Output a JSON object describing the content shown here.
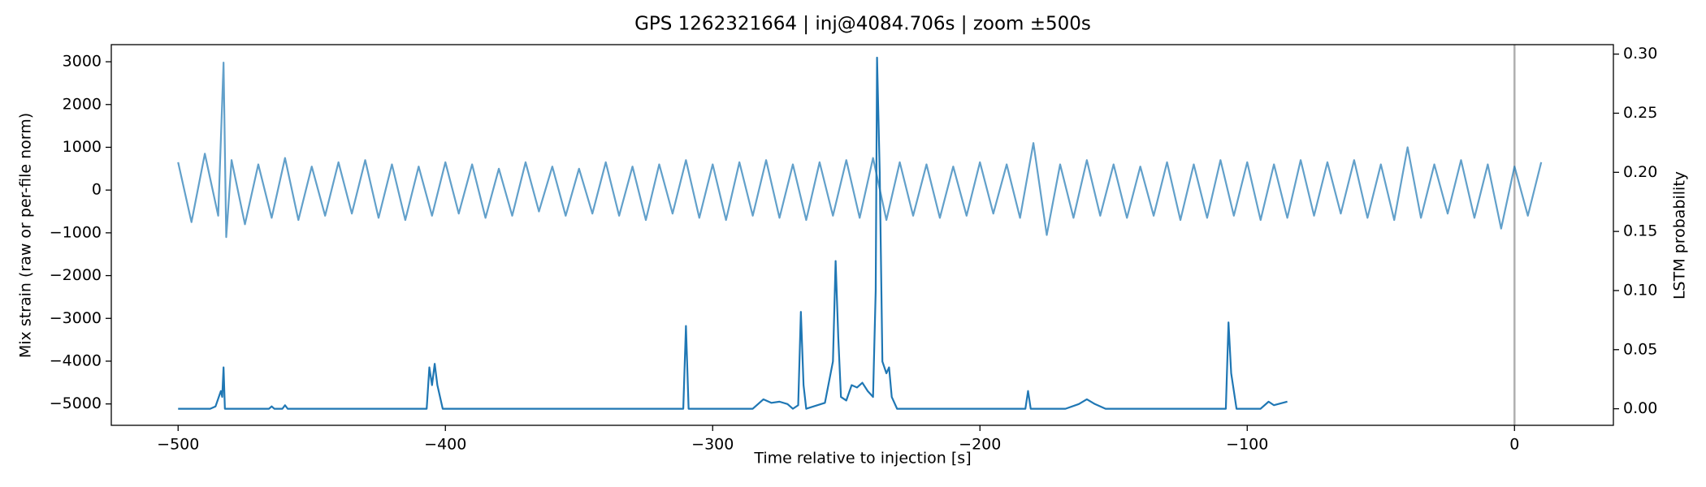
{
  "chart_data": {
    "type": "line",
    "title": "GPS 1262321664 | inj@4084.706s | zoom ±500s",
    "xlabel": "Time relative to injection [s]",
    "ylabel": "Mix strain (raw or per-file norm)",
    "y2label": "LSTM probability",
    "xlim": [
      -525,
      37
    ],
    "ylim": [
      -5500,
      3400
    ],
    "y2lim": [
      -0.014,
      0.308
    ],
    "xticks": [
      {
        "value": -500,
        "label": "−500"
      },
      {
        "value": -400,
        "label": "−400"
      },
      {
        "value": -300,
        "label": "−300"
      },
      {
        "value": -200,
        "label": "−200"
      },
      {
        "value": -100,
        "label": "−100"
      },
      0
    ],
    "yticks": [
      {
        "value": -5000,
        "label": "−5000"
      },
      {
        "value": -4000,
        "label": "−4000"
      },
      {
        "value": -3000,
        "label": "−3000"
      },
      {
        "value": -2000,
        "label": "−2000"
      },
      {
        "value": -1000,
        "label": "−1000"
      },
      0,
      1000,
      2000,
      3000
    ],
    "y2ticks": [
      {
        "value": 0,
        "label": "0.00"
      },
      0.05,
      {
        "value": 0.1,
        "label": "0.10"
      },
      0.15,
      {
        "value": 0.2,
        "label": "0.20"
      },
      0.25,
      {
        "value": 0.3,
        "label": "0.30"
      }
    ],
    "vlines": [
      {
        "x": 0,
        "color": "#b0b0b0"
      }
    ],
    "series": [
      {
        "name": "strain",
        "color": "#1f77b4",
        "alpha": 0.7,
        "x": [
          -500,
          -495,
          -490,
          -485,
          -483,
          -482,
          -480,
          -475,
          -470,
          -465,
          -460,
          -455,
          -450,
          -445,
          -440,
          -435,
          -430,
          -425,
          -420,
          -415,
          -410,
          -405,
          -400,
          -395,
          -390,
          -385,
          -380,
          -375,
          -370,
          -365,
          -360,
          -355,
          -350,
          -345,
          -340,
          -335,
          -330,
          -325,
          -320,
          -315,
          -310,
          -305,
          -300,
          -295,
          -290,
          -285,
          -280,
          -275,
          -270,
          -265,
          -260,
          -255,
          -250,
          -245,
          -240,
          -235,
          -230,
          -225,
          -220,
          -215,
          -210,
          -205,
          -200,
          -195,
          -190,
          -185,
          -180,
          -175,
          -170,
          -165,
          -160,
          -155,
          -150,
          -145,
          -140,
          -135,
          -130,
          -125,
          -120,
          -115,
          -110,
          -105,
          -100,
          -95,
          -90,
          -85,
          -80,
          -75,
          -70,
          -65,
          -60,
          -55,
          -50,
          -45,
          -40,
          -35,
          -30,
          -25,
          -20,
          -15,
          -10,
          -5,
          0,
          5,
          10
        ],
        "values": [
          650,
          -750,
          850,
          -600,
          2980,
          -1100,
          700,
          -800,
          600,
          -650,
          750,
          -700,
          550,
          -600,
          650,
          -550,
          700,
          -650,
          600,
          -700,
          550,
          -600,
          650,
          -550,
          600,
          -650,
          500,
          -600,
          650,
          -500,
          550,
          -600,
          500,
          -550,
          650,
          -600,
          550,
          -700,
          600,
          -550,
          700,
          -650,
          600,
          -700,
          650,
          -600,
          700,
          -650,
          600,
          -700,
          650,
          -600,
          700,
          -650,
          750,
          -700,
          650,
          -600,
          600,
          -650,
          550,
          -600,
          650,
          -550,
          600,
          -650,
          1100,
          -1050,
          600,
          -650,
          700,
          -600,
          600,
          -650,
          550,
          -600,
          650,
          -700,
          600,
          -650,
          700,
          -600,
          650,
          -700,
          600,
          -650,
          700,
          -600,
          650,
          -550,
          700,
          -650,
          600,
          -700,
          1000,
          -650,
          600,
          -550,
          700,
          -650,
          600,
          -900,
          550,
          -600,
          650
        ]
      },
      {
        "name": "LSTM",
        "color": "#1f77b4",
        "alpha": 1,
        "axis": "y2",
        "x": [
          -500,
          -488,
          -486,
          -484,
          -483.5,
          -483,
          -482.5,
          -466,
          -465,
          -464,
          -461,
          -460,
          -459,
          -407,
          -406,
          -405,
          -404,
          -403,
          -401,
          -311,
          -310,
          -309,
          -285,
          -281,
          -278,
          -275,
          -272,
          -270,
          -268,
          -267,
          -266,
          -265,
          -258,
          -255,
          -254,
          -253,
          -252,
          -250,
          -248,
          -246,
          -244,
          -242,
          -240,
          -239,
          -238.5,
          -237.5,
          -236.5,
          -235,
          -234,
          -233,
          -231,
          -183,
          -182,
          -181,
          -168,
          -163,
          -160,
          -157,
          -153,
          -108,
          -107,
          -106,
          -105,
          -104,
          -95,
          -92,
          -90,
          -85
        ],
        "values": [
          0,
          0,
          0.002,
          0.015,
          0.01,
          0.035,
          0,
          0,
          0.002,
          0,
          0,
          0.003,
          0,
          0,
          0.035,
          0.02,
          0.038,
          0.02,
          0,
          0,
          0.07,
          0,
          0,
          0.008,
          0.005,
          0.006,
          0.004,
          0,
          0.003,
          0.082,
          0.02,
          0,
          0.005,
          0.04,
          0.125,
          0.06,
          0.01,
          0.007,
          0.02,
          0.018,
          0.022,
          0.015,
          0.01,
          0.1,
          0.297,
          0.2,
          0.04,
          0.03,
          0.035,
          0.01,
          0,
          0,
          0.015,
          0,
          0,
          0.004,
          0.008,
          0.004,
          0,
          0,
          0.073,
          0.03,
          0.015,
          0,
          0,
          0.006,
          0.003,
          0.006
        ]
      }
    ]
  }
}
